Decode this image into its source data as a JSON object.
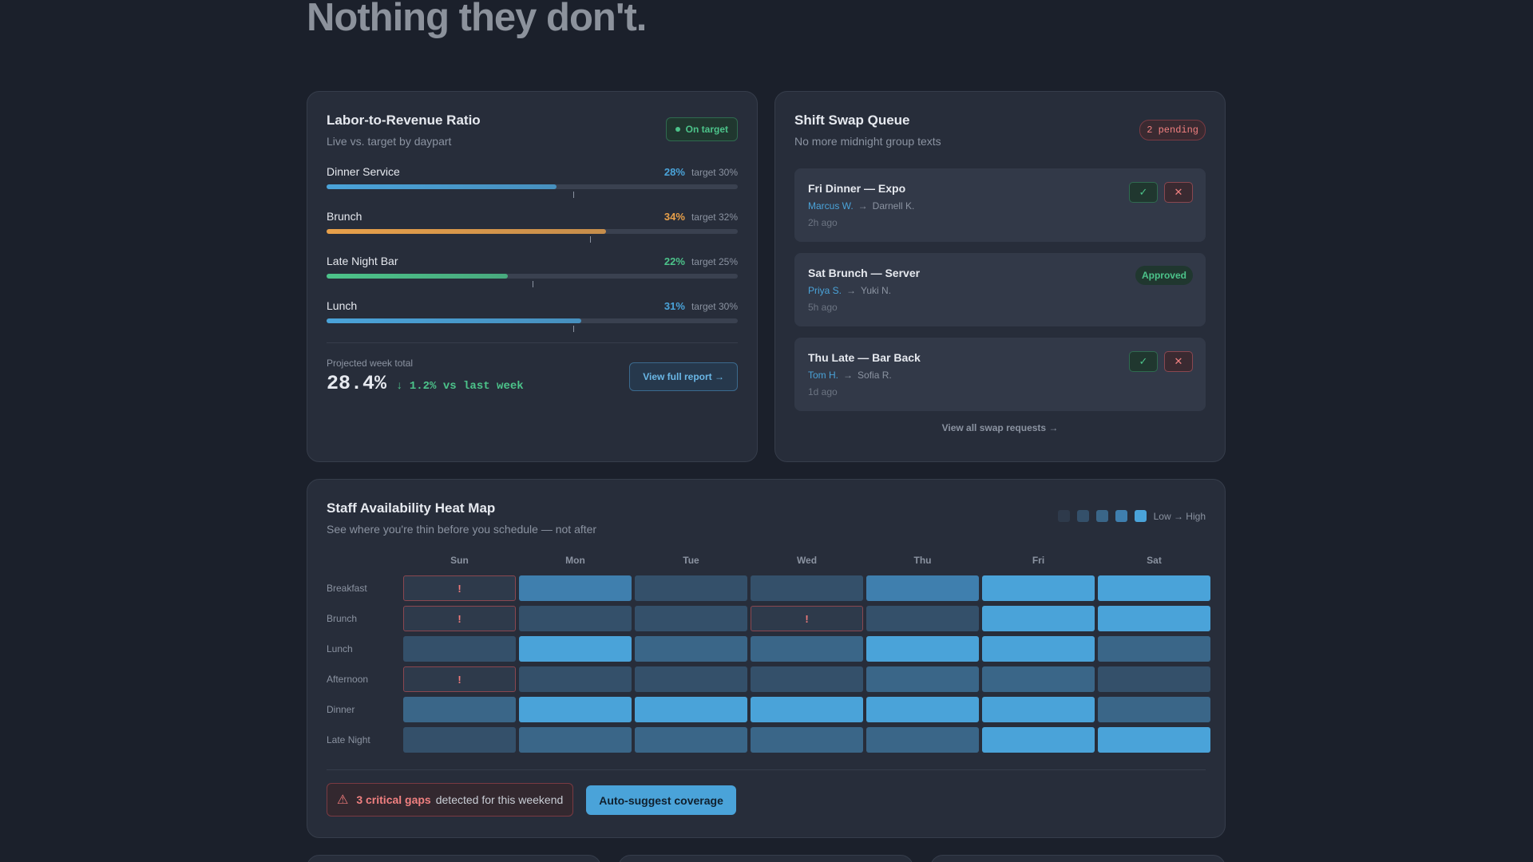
{
  "hero": {
    "title": "Nothing they don't."
  },
  "labor": {
    "title": "Labor-to-Revenue Ratio",
    "subtitle": "Live vs. target by daypart",
    "badge": "On target",
    "scale": [
      0,
      50
    ],
    "items": [
      {
        "name": "Dinner Service",
        "value": 28,
        "value_label": "28%",
        "target": 30,
        "target_label": "target 30%",
        "color": "#4aa3d9"
      },
      {
        "name": "Brunch",
        "value": 34,
        "value_label": "34%",
        "target": 32,
        "target_label": "target 32%",
        "color": "#e8a04a"
      },
      {
        "name": "Late Night Bar",
        "value": 22,
        "value_label": "22%",
        "target": 25,
        "target_label": "target 25%",
        "color": "#4cc38a"
      },
      {
        "name": "Lunch",
        "value": 31,
        "value_label": "31%",
        "target": 30,
        "target_label": "target 30%",
        "color": "#4aa3d9"
      }
    ],
    "projected_label": "Projected week total",
    "projected_value": "28.4%",
    "projected_change": "↓ 1.2% vs last week",
    "button": "View full report →"
  },
  "swaps": {
    "title": "Shift Swap Queue",
    "subtitle": "No more midnight group texts",
    "badge": "2 pending",
    "requests": [
      {
        "title": "Fri Dinner — Expo",
        "from": "Marcus W.",
        "to": "Darnell K.",
        "time": "2h ago",
        "approve": "✓",
        "reject": "✕"
      },
      {
        "title": "Sat Brunch — Server",
        "from": "Priya S.",
        "to": "Yuki N.",
        "time": "5h ago",
        "status": "Approved"
      },
      {
        "title": "Thu Late — Bar Back",
        "from": "Tom H.",
        "to": "Sofia R.",
        "time": "1d ago",
        "approve": "✓",
        "reject": "✕"
      }
    ],
    "footer": "View all swap requests →"
  },
  "heatmap": {
    "title": "Staff Availability Heat Map",
    "subtitle": "See where you're thin before you schedule — not after",
    "legend": "Low → High",
    "days": [
      "Sun",
      "Mon",
      "Tue",
      "Wed",
      "Thu",
      "Fri",
      "Sat"
    ],
    "rows": [
      {
        "label": "Breakfast",
        "cells": [
          {
            "level": 1,
            "flag": "!"
          },
          {
            "level": 4
          },
          {
            "level": 2
          },
          {
            "level": 2
          },
          {
            "level": 4
          },
          {
            "level": 5
          },
          {
            "level": 5
          }
        ]
      },
      {
        "label": "Brunch",
        "cells": [
          {
            "level": 1,
            "flag": "!"
          },
          {
            "level": 2
          },
          {
            "level": 2
          },
          {
            "level": 1,
            "flag": "!"
          },
          {
            "level": 2
          },
          {
            "level": 5
          },
          {
            "level": 5
          }
        ]
      },
      {
        "label": "Lunch",
        "cells": [
          {
            "level": 2
          },
          {
            "level": 5
          },
          {
            "level": 3
          },
          {
            "level": 3
          },
          {
            "level": 5
          },
          {
            "level": 5
          },
          {
            "level": 3
          }
        ]
      },
      {
        "label": "Afternoon",
        "cells": [
          {
            "level": 1,
            "flag": "!"
          },
          {
            "level": 2
          },
          {
            "level": 2
          },
          {
            "level": 2
          },
          {
            "level": 3
          },
          {
            "level": 3
          },
          {
            "level": 2
          }
        ]
      },
      {
        "label": "Dinner",
        "cells": [
          {
            "level": 3
          },
          {
            "level": 5
          },
          {
            "level": 5
          },
          {
            "level": 5
          },
          {
            "level": 5
          },
          {
            "level": 5
          },
          {
            "level": 3
          }
        ]
      },
      {
        "label": "Late Night",
        "cells": [
          {
            "level": 2
          },
          {
            "level": 3
          },
          {
            "level": 3
          },
          {
            "level": 3
          },
          {
            "level": 3
          },
          {
            "level": 5
          },
          {
            "level": 5
          }
        ]
      }
    ],
    "alert_strong": "3 critical gaps",
    "alert_text": "detected for this weekend",
    "button": "Auto-suggest coverage"
  }
}
